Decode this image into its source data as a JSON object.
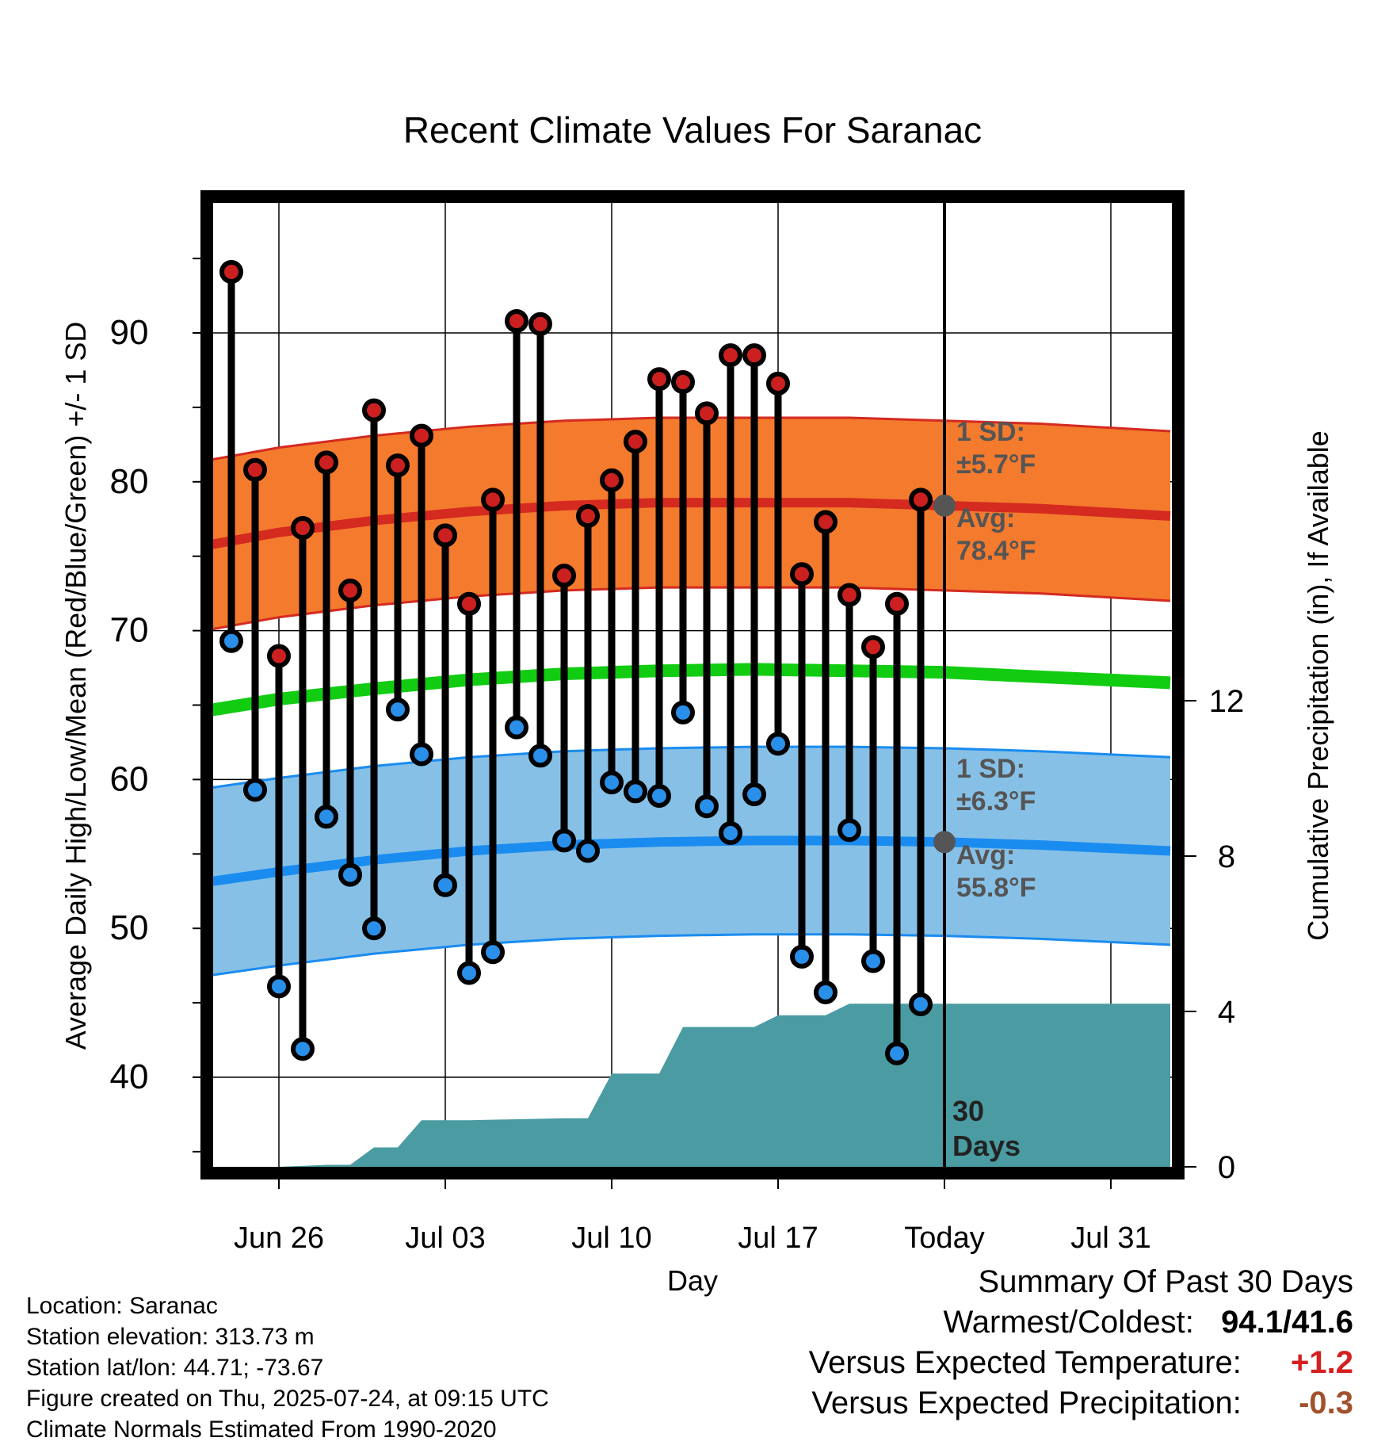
{
  "chart_data": {
    "type": "line",
    "title": "Recent Climate Values For Saranac",
    "xlabel": "Day",
    "ylabel": "Average Daily High/Low/Mean (Red/Blue/Green) +/- 1 SD",
    "y2label": "Cumulative Precipitation (in), If Available",
    "ylim": [
      34,
      100
    ],
    "y2lim": [
      0,
      20
    ],
    "yticks": [
      40,
      50,
      60,
      70,
      80,
      90
    ],
    "y2ticks": [
      0,
      4,
      8,
      12
    ],
    "x_tick_labels": [
      {
        "day": 3,
        "label": "Jun 26"
      },
      {
        "day": 10,
        "label": "Jul 03"
      },
      {
        "day": 17,
        "label": "Jul 10"
      },
      {
        "day": 24,
        "label": "Jul 17"
      },
      {
        "day": 31,
        "label": "Today"
      },
      {
        "day": 38,
        "label": "Jul 31"
      }
    ],
    "xlim": [
      -0.5,
      40.5
    ],
    "today_day": 31,
    "days": [
      1,
      2,
      3,
      4,
      5,
      6,
      7,
      8,
      9,
      10,
      11,
      12,
      13,
      14,
      15,
      16,
      17,
      18,
      19,
      20,
      21,
      22,
      23,
      24,
      25,
      26,
      27,
      28,
      29,
      30
    ],
    "series": [
      {
        "name": "High",
        "color": "#cc2020",
        "values": [
          94.1,
          80.8,
          68.3,
          76.9,
          81.3,
          72.7,
          84.8,
          81.1,
          83.1,
          76.4,
          71.8,
          78.8,
          90.8,
          90.6,
          73.7,
          77.7,
          80.1,
          82.7,
          86.9,
          86.7,
          84.6,
          88.5,
          88.5,
          86.6,
          73.8,
          77.3,
          72.4,
          68.9,
          71.8,
          78.8
        ]
      },
      {
        "name": "Low",
        "color": "#2a8fe8",
        "values": [
          69.3,
          59.3,
          46.1,
          41.9,
          57.5,
          53.6,
          50.0,
          64.7,
          61.7,
          52.9,
          47.0,
          48.4,
          63.5,
          61.6,
          55.9,
          55.2,
          59.8,
          59.2,
          58.9,
          64.5,
          58.2,
          56.4,
          59.0,
          62.4,
          48.1,
          45.7,
          56.6,
          47.8,
          41.6,
          44.9
        ]
      }
    ],
    "normals": {
      "x": [
        -0.5,
        3,
        7,
        11,
        15,
        19,
        23,
        27,
        31,
        35,
        40.5
      ],
      "high_avg": [
        75.6,
        76.6,
        77.4,
        78.0,
        78.4,
        78.6,
        78.6,
        78.6,
        78.4,
        78.2,
        77.7
      ],
      "high_sd": 5.7,
      "low_avg": [
        53.0,
        53.8,
        54.6,
        55.2,
        55.6,
        55.8,
        55.9,
        55.9,
        55.8,
        55.6,
        55.2
      ],
      "low_sd": 6.3,
      "mean": [
        64.5,
        65.4,
        66.1,
        66.7,
        67.1,
        67.3,
        67.4,
        67.3,
        67.2,
        66.9,
        66.5
      ]
    },
    "precip": {
      "x": [
        -0.5,
        3,
        5,
        6,
        7,
        8,
        9,
        10,
        11,
        15,
        16,
        17,
        18,
        19,
        20,
        21,
        22,
        23,
        24,
        25,
        26,
        27,
        40.5
      ],
      "values": [
        0,
        0,
        0.05,
        0.05,
        0.5,
        0.5,
        1.2,
        1.2,
        1.2,
        1.25,
        1.25,
        2.4,
        2.4,
        2.4,
        3.6,
        3.6,
        3.6,
        3.6,
        3.9,
        3.9,
        3.9,
        4.2,
        4.2
      ]
    },
    "grid": true,
    "annotations": {
      "high_sd_line1": "1 SD:",
      "high_sd_line2": "±5.7°F",
      "high_avg_line1": "Avg:",
      "high_avg_line2": "78.4°F",
      "low_sd_line1": "1 SD:",
      "low_sd_line2": "±6.3°F",
      "low_avg_line1": "Avg:",
      "low_avg_line2": "55.8°F",
      "days_line1": "30",
      "days_line2": "Days"
    },
    "colors": {
      "high_band": "#f47a2d",
      "high_line": "#d42a20",
      "low_band": "#86c0e6",
      "low_line": "#1a8cf0",
      "mean_line": "#12cc12",
      "precip": "#4a9ca2",
      "annotation": "#555555",
      "marker_fill_high": "#cc2020",
      "marker_fill_low": "#2a8fe8"
    }
  },
  "info": {
    "location": "Location: Saranac",
    "elevation": "Station elevation: 313.73 m",
    "latlon": "Station lat/lon: 44.71; -73.67",
    "created": "Figure created on Thu, 2025-07-24, at 09:15 UTC",
    "normals": "Climate Normals Estimated From 1990-2020"
  },
  "summary": {
    "title": "Summary Of Past 30 Days",
    "warm_cold_label": "Warmest/Coldest:",
    "warm_cold_value": "94.1/41.6",
    "temp_label": "Versus Expected Temperature:",
    "temp_value": "+1.2",
    "temp_color": "#d42020",
    "precip_label": "Versus Expected Precipitation:",
    "precip_value": "-0.3",
    "precip_color": "#a0522d"
  }
}
